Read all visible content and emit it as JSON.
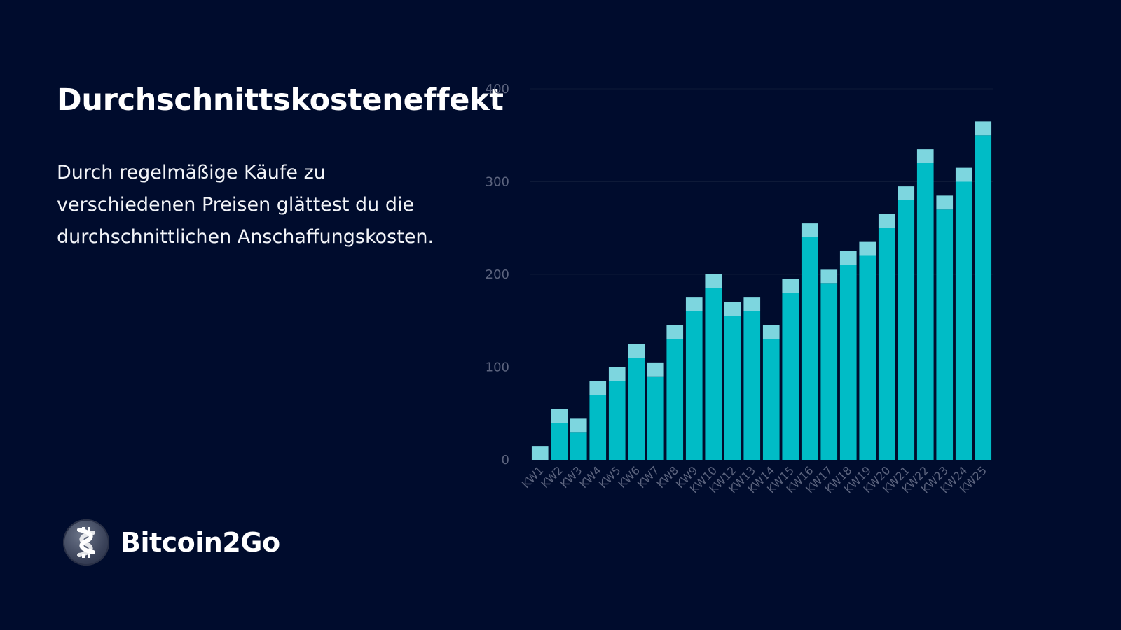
{
  "page": {
    "title": "Durchschnittskosteneffekt",
    "description": "Durch regelmäßige Käufe zu verschiedenen Preisen glättest du die durchschnittlichen Anschaffungskosten.",
    "brand": "Bitcoin2Go",
    "logo_icon": "bitcoin-helix-logo"
  },
  "colors": {
    "background": "#000c2d",
    "bar_base": "#00bcc6",
    "bar_top": "#7dd6df",
    "gridline": "#0e1a38",
    "axis_text": "#5c647e"
  },
  "chart_data": {
    "type": "bar",
    "stacked": true,
    "categories": [
      "KW1",
      "KW2",
      "KW3",
      "KW4",
      "KW5",
      "KW6",
      "KW7",
      "KW8",
      "KW9",
      "KW10",
      "KW12",
      "KW13",
      "KW14",
      "KW15",
      "KW16",
      "KW17",
      "KW18",
      "KW19",
      "KW20",
      "KW21",
      "KW22",
      "KW23",
      "KW24",
      "KW25"
    ],
    "series": [
      {
        "values": [
          0,
          40,
          30,
          70,
          85,
          110,
          90,
          130,
          160,
          185,
          155,
          160,
          130,
          180,
          240,
          190,
          210,
          220,
          250,
          280,
          320,
          270,
          300,
          350
        ]
      },
      {
        "values": [
          15,
          15,
          15,
          15,
          15,
          15,
          15,
          15,
          15,
          15,
          15,
          15,
          15,
          15,
          15,
          15,
          15,
          15,
          15,
          15,
          15,
          15,
          15,
          15
        ]
      }
    ],
    "ylim": [
      0,
      400
    ],
    "yticks": [
      0,
      100,
      200,
      300,
      400
    ],
    "grid": true,
    "legend": "none"
  }
}
